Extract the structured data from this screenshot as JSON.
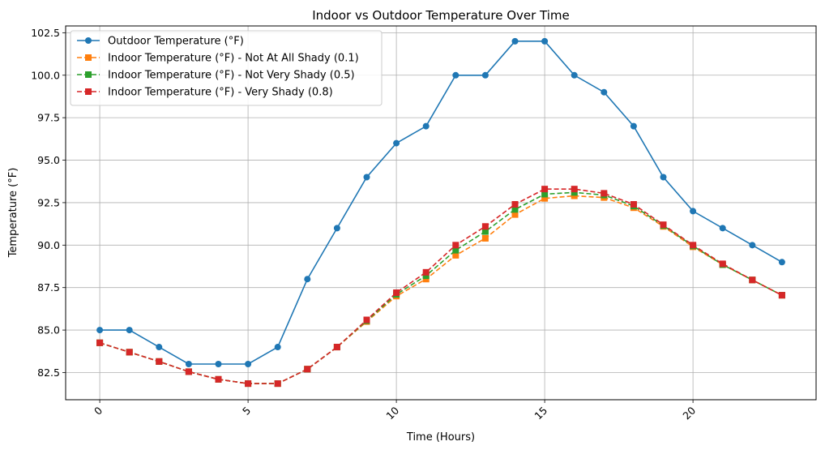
{
  "chart_data": {
    "type": "line",
    "title": "Indoor vs Outdoor Temperature Over Time",
    "xlabel": "Time (Hours)",
    "ylabel": "Temperature (°F)",
    "xlim": [
      -1.15,
      24.15
    ],
    "ylim": [
      80.9,
      102.9
    ],
    "x_ticks": [
      0,
      5,
      10,
      15,
      20
    ],
    "y_ticks": [
      82.5,
      85.0,
      87.5,
      90.0,
      92.5,
      95.0,
      97.5,
      100.0,
      102.5
    ],
    "y_tick_labels": [
      "82.5",
      "85.0",
      "87.5",
      "90.0",
      "92.5",
      "95.0",
      "97.5",
      "100.0",
      "102.5"
    ],
    "grid": true,
    "legend_position": "upper-left",
    "x": [
      0,
      1,
      2,
      3,
      4,
      5,
      6,
      7,
      8,
      9,
      10,
      11,
      12,
      13,
      14,
      15,
      16,
      17,
      18,
      19,
      20,
      21,
      22,
      23
    ],
    "series": [
      {
        "name": "Outdoor Temperature (°F)",
        "color": "#1f77b4",
        "line_style": "solid",
        "marker": "circle",
        "values": [
          85,
          85,
          84,
          83,
          83,
          83,
          84,
          88,
          91,
          94,
          96,
          97,
          100,
          100,
          102,
          102,
          100,
          99,
          97,
          94,
          92,
          91,
          90,
          89
        ]
      },
      {
        "name": "Indoor Temperature (°F) - Not At All Shady (0.1)",
        "color": "#ff7f0e",
        "line_style": "dashed",
        "marker": "square",
        "values": [
          84.25,
          83.7,
          83.15,
          82.55,
          82.1,
          81.85,
          81.85,
          82.7,
          84.0,
          85.5,
          87.0,
          88.0,
          89.4,
          90.4,
          91.8,
          92.75,
          92.9,
          92.8,
          92.2,
          91.1,
          89.9,
          88.85,
          87.95,
          87.05
        ]
      },
      {
        "name": "Indoor Temperature (°F) - Not Very Shady (0.5)",
        "color": "#2ca02c",
        "line_style": "dashed",
        "marker": "square",
        "values": [
          84.25,
          83.7,
          83.15,
          82.55,
          82.1,
          81.85,
          81.85,
          82.7,
          84.0,
          85.55,
          87.1,
          88.2,
          89.7,
          90.8,
          92.1,
          93.0,
          93.1,
          92.95,
          92.3,
          91.15,
          89.95,
          88.85,
          87.95,
          87.05
        ]
      },
      {
        "name": "Indoor Temperature (°F) - Very Shady (0.8)",
        "color": "#d62728",
        "line_style": "dashed",
        "marker": "square",
        "values": [
          84.25,
          83.7,
          83.15,
          82.55,
          82.1,
          81.85,
          81.85,
          82.7,
          84.0,
          85.6,
          87.2,
          88.4,
          90.0,
          91.1,
          92.4,
          93.3,
          93.3,
          93.05,
          92.4,
          91.2,
          90.0,
          88.9,
          87.95,
          87.05
        ]
      }
    ]
  }
}
